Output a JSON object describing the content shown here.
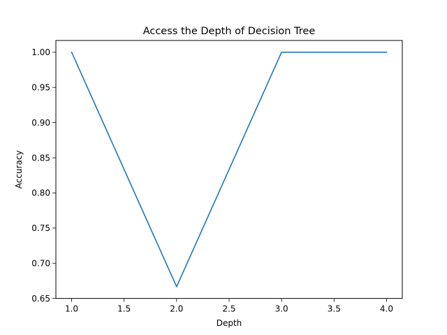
{
  "chart_data": {
    "type": "line",
    "title": "Access the Depth of Decision Tree",
    "xlabel": "Depth",
    "ylabel": "Accuracy",
    "xlim": [
      0.85,
      4.15
    ],
    "ylim": [
      0.65,
      1.0167
    ],
    "x_ticks": [
      1.0,
      1.5,
      2.0,
      2.5,
      3.0,
      3.5,
      4.0
    ],
    "x_tick_labels": [
      "1.0",
      "1.5",
      "2.0",
      "2.5",
      "3.0",
      "3.5",
      "4.0"
    ],
    "y_ticks": [
      0.65,
      0.7,
      0.75,
      0.8,
      0.85,
      0.9,
      0.95,
      1.0
    ],
    "y_tick_labels": [
      "0.65",
      "0.70",
      "0.75",
      "0.80",
      "0.85",
      "0.90",
      "0.95",
      "1.00"
    ],
    "grid": false,
    "series": [
      {
        "color": "#1f77b4",
        "x": [
          1,
          2,
          3,
          4
        ],
        "y": [
          1.0,
          0.6667,
          1.0,
          1.0
        ]
      }
    ]
  }
}
